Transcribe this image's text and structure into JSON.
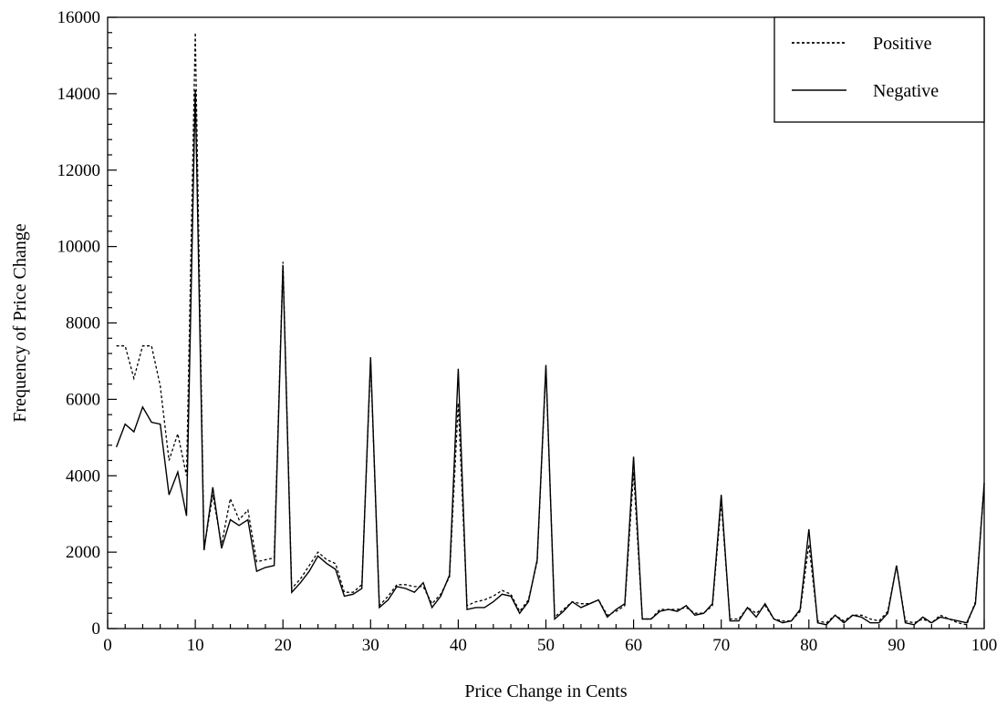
{
  "chart_data": {
    "type": "line",
    "title": "",
    "xlabel": "Price Change in Cents",
    "ylabel": "Frequency of Price Change",
    "xlim": [
      0,
      100
    ],
    "ylim": [
      0,
      16000
    ],
    "xticks": [
      0,
      10,
      20,
      30,
      40,
      50,
      60,
      70,
      80,
      90,
      100
    ],
    "yticks": [
      0,
      2000,
      4000,
      6000,
      8000,
      10000,
      12000,
      14000,
      16000
    ],
    "grid": false,
    "legend_position": "top-right",
    "x": [
      1,
      2,
      3,
      4,
      5,
      6,
      7,
      8,
      9,
      10,
      11,
      12,
      13,
      14,
      15,
      16,
      17,
      18,
      19,
      20,
      21,
      22,
      23,
      24,
      25,
      26,
      27,
      28,
      29,
      30,
      31,
      32,
      33,
      34,
      35,
      36,
      37,
      38,
      39,
      40,
      41,
      42,
      43,
      44,
      45,
      46,
      47,
      48,
      49,
      50,
      51,
      52,
      53,
      54,
      55,
      56,
      57,
      58,
      59,
      60,
      61,
      62,
      63,
      64,
      65,
      66,
      67,
      68,
      69,
      70,
      71,
      72,
      73,
      74,
      75,
      76,
      77,
      78,
      79,
      80,
      81,
      82,
      83,
      84,
      85,
      86,
      87,
      88,
      89,
      90,
      91,
      92,
      93,
      94,
      95,
      96,
      97,
      98,
      99,
      100
    ],
    "series": [
      {
        "name": "Positive",
        "style": "dotted",
        "color": "#000000",
        "values": [
          7400,
          7400,
          6550,
          7400,
          7400,
          6350,
          4400,
          5100,
          4000,
          15600,
          2100,
          3500,
          2200,
          3400,
          2850,
          3100,
          1750,
          1800,
          1850,
          9600,
          1050,
          1300,
          1650,
          2000,
          1800,
          1700,
          950,
          950,
          1150,
          7000,
          600,
          850,
          1150,
          1150,
          1100,
          1100,
          650,
          900,
          1350,
          5900,
          600,
          700,
          750,
          850,
          1000,
          900,
          450,
          750,
          1750,
          6800,
          300,
          500,
          700,
          650,
          650,
          750,
          350,
          450,
          600,
          4100,
          250,
          250,
          500,
          500,
          500,
          550,
          400,
          400,
          600,
          3300,
          250,
          250,
          550,
          400,
          600,
          250,
          200,
          200,
          450,
          2200,
          200,
          150,
          350,
          200,
          350,
          350,
          250,
          200,
          450,
          1650,
          200,
          150,
          250,
          150,
          350,
          250,
          150,
          100,
          700,
          3800
        ]
      },
      {
        "name": "Negative",
        "style": "solid",
        "color": "#000000",
        "values": [
          4750,
          5350,
          5150,
          5800,
          5400,
          5350,
          3500,
          4100,
          2950,
          14100,
          2050,
          3700,
          2100,
          2850,
          2700,
          2850,
          1500,
          1600,
          1650,
          9500,
          950,
          1200,
          1500,
          1900,
          1700,
          1550,
          850,
          900,
          1050,
          7100,
          550,
          750,
          1100,
          1050,
          950,
          1200,
          550,
          850,
          1400,
          6800,
          500,
          550,
          550,
          700,
          900,
          850,
          400,
          700,
          1800,
          6900,
          250,
          450,
          700,
          550,
          650,
          750,
          300,
          500,
          650,
          4500,
          250,
          250,
          450,
          500,
          450,
          600,
          350,
          400,
          650,
          3500,
          200,
          200,
          550,
          300,
          650,
          250,
          150,
          200,
          500,
          2600,
          150,
          100,
          350,
          150,
          350,
          300,
          150,
          150,
          400,
          1650,
          150,
          100,
          300,
          150,
          300,
          250,
          200,
          150,
          650,
          3800
        ]
      }
    ]
  }
}
